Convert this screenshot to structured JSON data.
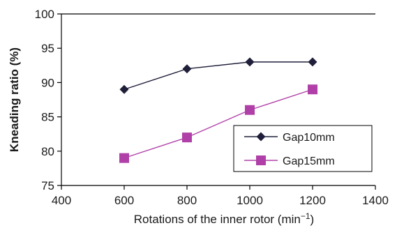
{
  "chart_data": {
    "type": "line",
    "xlabel": "Rotations of the inner rotor (min",
    "xlabel_unit_sup": "−1",
    "xlabel_close": ")",
    "ylabel": "Kneading ratio (%)",
    "xlim": [
      400,
      1400
    ],
    "ylim": [
      75,
      100
    ],
    "xticks": [
      400,
      600,
      800,
      1000,
      1200,
      1400
    ],
    "yticks": [
      75,
      80,
      85,
      90,
      95,
      100
    ],
    "grid": false,
    "legend_position": "bottom-right",
    "series": [
      {
        "name": "Gap10mm",
        "marker": "diamond",
        "color": "#1f1f3a",
        "x": [
          600,
          800,
          1000,
          1200
        ],
        "y": [
          89,
          92,
          93,
          93
        ]
      },
      {
        "name": "Gap15mm",
        "marker": "square",
        "color": "#b040a8",
        "x": [
          600,
          800,
          1000,
          1200
        ],
        "y": [
          79,
          82,
          86,
          89
        ]
      }
    ]
  }
}
